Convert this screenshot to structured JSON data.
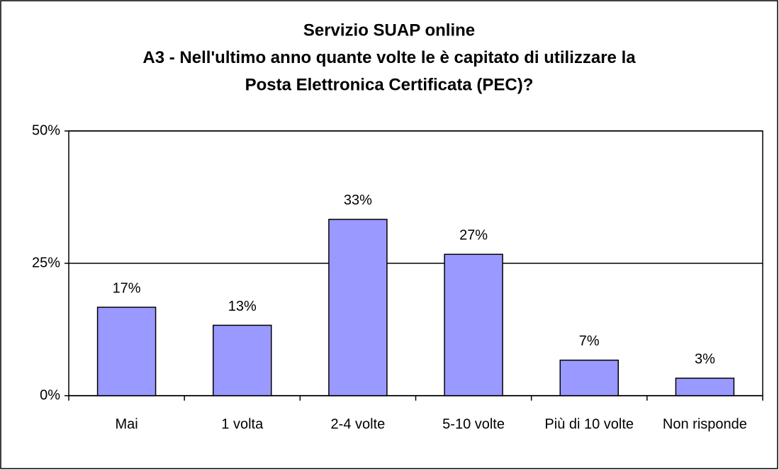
{
  "chart_data": {
    "type": "bar",
    "title": [
      "Servizio SUAP online",
      "A3 - Nell'ultimo anno quante volte le è capitato di utilizzare la",
      "Posta Elettronica Certificata (PEC)?"
    ],
    "categories": [
      "Mai",
      "1 volta",
      "2-4 volte",
      "5-10 volte",
      "Più di 10 volte",
      "Non risponde"
    ],
    "values": [
      16.7,
      13.3,
      33.3,
      26.7,
      6.7,
      3.3
    ],
    "value_labels": [
      "17%",
      "13%",
      "33%",
      "27%",
      "7%",
      "3%"
    ],
    "color": "#9999ff",
    "ylim": [
      0,
      50
    ],
    "yticks": [
      {
        "value": 0,
        "label": "0%"
      },
      {
        "value": 25,
        "label": "25%"
      },
      {
        "value": 50,
        "label": "50%"
      }
    ],
    "grid": true
  }
}
